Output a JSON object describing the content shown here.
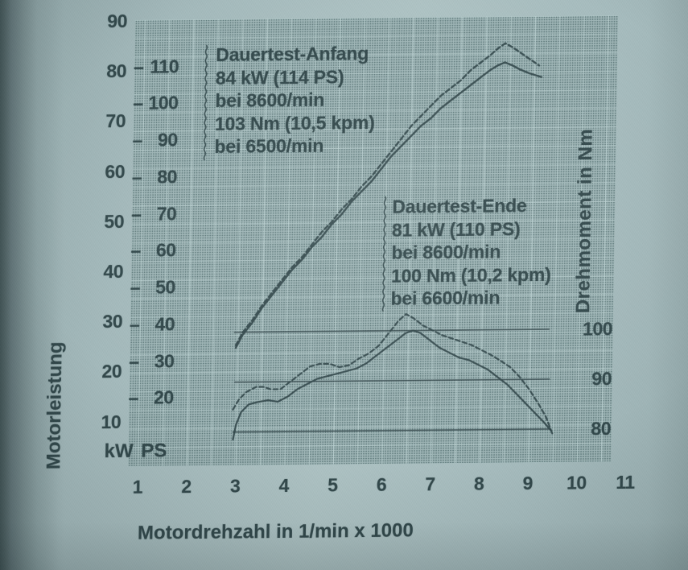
{
  "chart": {
    "left_axis": {
      "title": "Motorleistung",
      "unit_row": "kW PS",
      "tick_dash": "–",
      "kw_ticks": [
        90,
        80,
        70,
        60,
        50,
        40,
        30,
        20,
        10
      ],
      "ps_ticks": [
        110,
        100,
        90,
        80,
        70,
        60,
        50,
        40,
        30,
        20
      ]
    },
    "right_axis": {
      "title": "Drehmoment in Nm",
      "ticks": [
        100,
        90,
        80
      ]
    },
    "x_axis": {
      "label": "Motordrehzahl in 1/min x 1000",
      "ticks": [
        1,
        2,
        3,
        4,
        5,
        6,
        7,
        8,
        9,
        10,
        11
      ]
    },
    "annotations": {
      "anfang": {
        "lines": [
          "Dauertest-Anfang",
          "84 kW (114 PS)",
          "bei 8600/min",
          "103 Nm (10,5 kpm)",
          "bei 6500/min"
        ]
      },
      "ende": {
        "lines": [
          "Dauertest-Ende",
          "81 kW (110 PS)",
          "bei 8600/min",
          "100 Nm (10,2 kpm)",
          "bei 6600/min"
        ]
      }
    },
    "colors": {
      "ink": "#31474a",
      "paper": "#a8bec0",
      "raster": "#9fb6b7"
    }
  },
  "chart_data": {
    "type": "line",
    "title": "",
    "xlabel": "Motordrehzahl in 1/min x 1000",
    "x_range": [
      1,
      11
    ],
    "left_axis": {
      "label": "Motorleistung",
      "units": [
        "kW",
        "PS"
      ],
      "kw_range": [
        10,
        90
      ],
      "ps_range": [
        20,
        110
      ]
    },
    "right_axis": {
      "label": "Drehmoment in Nm",
      "range": [
        80,
        100
      ],
      "ticks": [
        100,
        90,
        80
      ]
    },
    "grid": true,
    "legend_position": "none",
    "series": [
      {
        "id": "power-anfang",
        "name": "Leistung Dauertest-Anfang",
        "unit": "kW",
        "style": "dashed",
        "peak": {
          "value": 84,
          "value_ps": 114,
          "at_rpm": 8600
        },
        "points": [
          [
            2.97,
            25
          ],
          [
            3.1,
            27.5
          ],
          [
            3.3,
            30
          ],
          [
            3.5,
            33
          ],
          [
            3.7,
            35.5
          ],
          [
            3.9,
            38
          ],
          [
            4.1,
            40.5
          ],
          [
            4.3,
            42.5
          ],
          [
            4.5,
            45
          ],
          [
            4.7,
            47.5
          ],
          [
            4.9,
            49.5
          ],
          [
            5.1,
            52
          ],
          [
            5.3,
            54
          ],
          [
            5.5,
            56.5
          ],
          [
            5.7,
            58.5
          ],
          [
            5.9,
            61
          ],
          [
            6.1,
            63.5
          ],
          [
            6.3,
            66
          ],
          [
            6.5,
            68.5
          ],
          [
            6.7,
            70.5
          ],
          [
            6.9,
            72.5
          ],
          [
            7.1,
            74.5
          ],
          [
            7.3,
            76
          ],
          [
            7.5,
            77.5
          ],
          [
            7.7,
            79.5
          ],
          [
            7.9,
            81
          ],
          [
            8.1,
            82.5
          ],
          [
            8.25,
            83.8
          ],
          [
            8.4,
            84.8
          ],
          [
            8.55,
            84
          ],
          [
            8.7,
            83
          ],
          [
            8.85,
            82
          ],
          [
            9.0,
            81
          ],
          [
            9.1,
            80.3
          ]
        ]
      },
      {
        "id": "power-ende",
        "name": "Leistung Dauertest-Ende",
        "unit": "kW",
        "style": "solid",
        "peak": {
          "value": 81,
          "value_ps": 110,
          "at_rpm": 8600
        },
        "points": [
          [
            2.97,
            24.5
          ],
          [
            3.1,
            27
          ],
          [
            3.3,
            29.5
          ],
          [
            3.5,
            32.5
          ],
          [
            3.7,
            35
          ],
          [
            3.9,
            37.5
          ],
          [
            4.1,
            40
          ],
          [
            4.3,
            42
          ],
          [
            4.5,
            44.5
          ],
          [
            4.7,
            46.5
          ],
          [
            4.9,
            49
          ],
          [
            5.1,
            51
          ],
          [
            5.3,
            53.5
          ],
          [
            5.5,
            55.5
          ],
          [
            5.7,
            57.5
          ],
          [
            5.9,
            60
          ],
          [
            6.1,
            62.5
          ],
          [
            6.3,
            64.5
          ],
          [
            6.5,
            66.5
          ],
          [
            6.7,
            68.5
          ],
          [
            6.9,
            70
          ],
          [
            7.1,
            72
          ],
          [
            7.3,
            73.5
          ],
          [
            7.5,
            75
          ],
          [
            7.7,
            76.5
          ],
          [
            7.9,
            78
          ],
          [
            8.1,
            79.5
          ],
          [
            8.25,
            80.4
          ],
          [
            8.4,
            81
          ],
          [
            8.55,
            80.4
          ],
          [
            8.7,
            79.6
          ],
          [
            8.9,
            78.8
          ],
          [
            9.15,
            78
          ]
        ]
      },
      {
        "id": "torque-anfang",
        "name": "Drehmoment Dauertest-Anfang",
        "unit": "Nm",
        "style": "dashed",
        "peak": {
          "value": 103,
          "value_kpm": "10,5",
          "at_rpm": 6500
        },
        "points": [
          [
            2.93,
            84.5
          ],
          [
            3.05,
            86.5
          ],
          [
            3.2,
            88
          ],
          [
            3.4,
            89
          ],
          [
            3.55,
            89
          ],
          [
            3.7,
            88.5
          ],
          [
            3.9,
            88.5
          ],
          [
            4.1,
            90
          ],
          [
            4.3,
            91.5
          ],
          [
            4.5,
            93
          ],
          [
            4.7,
            93.5
          ],
          [
            4.9,
            93.5
          ],
          [
            5.1,
            92.8
          ],
          [
            5.3,
            93.2
          ],
          [
            5.5,
            94.5
          ],
          [
            5.7,
            95.5
          ],
          [
            5.9,
            97
          ],
          [
            6.1,
            99.5
          ],
          [
            6.3,
            102
          ],
          [
            6.45,
            103.3
          ],
          [
            6.6,
            102.5
          ],
          [
            6.8,
            101
          ],
          [
            7.0,
            100
          ],
          [
            7.2,
            99
          ],
          [
            7.5,
            98
          ],
          [
            7.8,
            97
          ],
          [
            8.0,
            96
          ],
          [
            8.2,
            95
          ],
          [
            8.4,
            93.8
          ],
          [
            8.6,
            92.5
          ],
          [
            8.8,
            90.5
          ],
          [
            9.0,
            88
          ],
          [
            9.2,
            85
          ],
          [
            9.35,
            82.5
          ],
          [
            9.5,
            78.8
          ]
        ]
      },
      {
        "id": "torque-ende",
        "name": "Drehmoment Dauertest-Ende",
        "unit": "Nm",
        "style": "solid",
        "peak": {
          "value": 100,
          "value_kpm": "10,2",
          "at_rpm": 6600
        },
        "points": [
          [
            2.94,
            78.5
          ],
          [
            3.0,
            81.5
          ],
          [
            3.1,
            84
          ],
          [
            3.25,
            85.5
          ],
          [
            3.45,
            86
          ],
          [
            3.65,
            86.3
          ],
          [
            3.85,
            86
          ],
          [
            4.05,
            87
          ],
          [
            4.25,
            88.5
          ],
          [
            4.45,
            89.5
          ],
          [
            4.65,
            90.5
          ],
          [
            4.85,
            91
          ],
          [
            5.05,
            91.5
          ],
          [
            5.25,
            92
          ],
          [
            5.45,
            92.5
          ],
          [
            5.65,
            93.5
          ],
          [
            5.85,
            95
          ],
          [
            6.05,
            96.5
          ],
          [
            6.25,
            98
          ],
          [
            6.45,
            99.5
          ],
          [
            6.6,
            100
          ],
          [
            6.75,
            99.5
          ],
          [
            6.95,
            98
          ],
          [
            7.15,
            96.5
          ],
          [
            7.35,
            95.5
          ],
          [
            7.55,
            94.5
          ],
          [
            7.75,
            94
          ],
          [
            7.95,
            93
          ],
          [
            8.15,
            92
          ],
          [
            8.35,
            90.5
          ],
          [
            8.55,
            89
          ],
          [
            8.75,
            87
          ],
          [
            8.95,
            85
          ],
          [
            9.15,
            83
          ],
          [
            9.3,
            81.5
          ],
          [
            9.45,
            79.8
          ]
        ]
      }
    ],
    "reference_lines": [
      {
        "axis": "Nm",
        "value": 100,
        "x_from": 2.93,
        "x_to": 9.4
      },
      {
        "axis": "Nm",
        "value": 90,
        "x_from": 2.95,
        "x_to": 9.42
      },
      {
        "axis": "Nm",
        "value": 80,
        "x_from": 2.93,
        "x_to": 9.46
      }
    ],
    "annotations": [
      {
        "id": "anfang",
        "text": "Dauertest-Anfang 84 kW (114 PS) bei 8600/min 103 Nm (10,5 kpm) bei 6500/min"
      },
      {
        "id": "ende",
        "text": "Dauertest-Ende 81 kW (110 PS) bei 8600/min 100 Nm (10,2 kpm) bei 6600/min"
      }
    ]
  }
}
